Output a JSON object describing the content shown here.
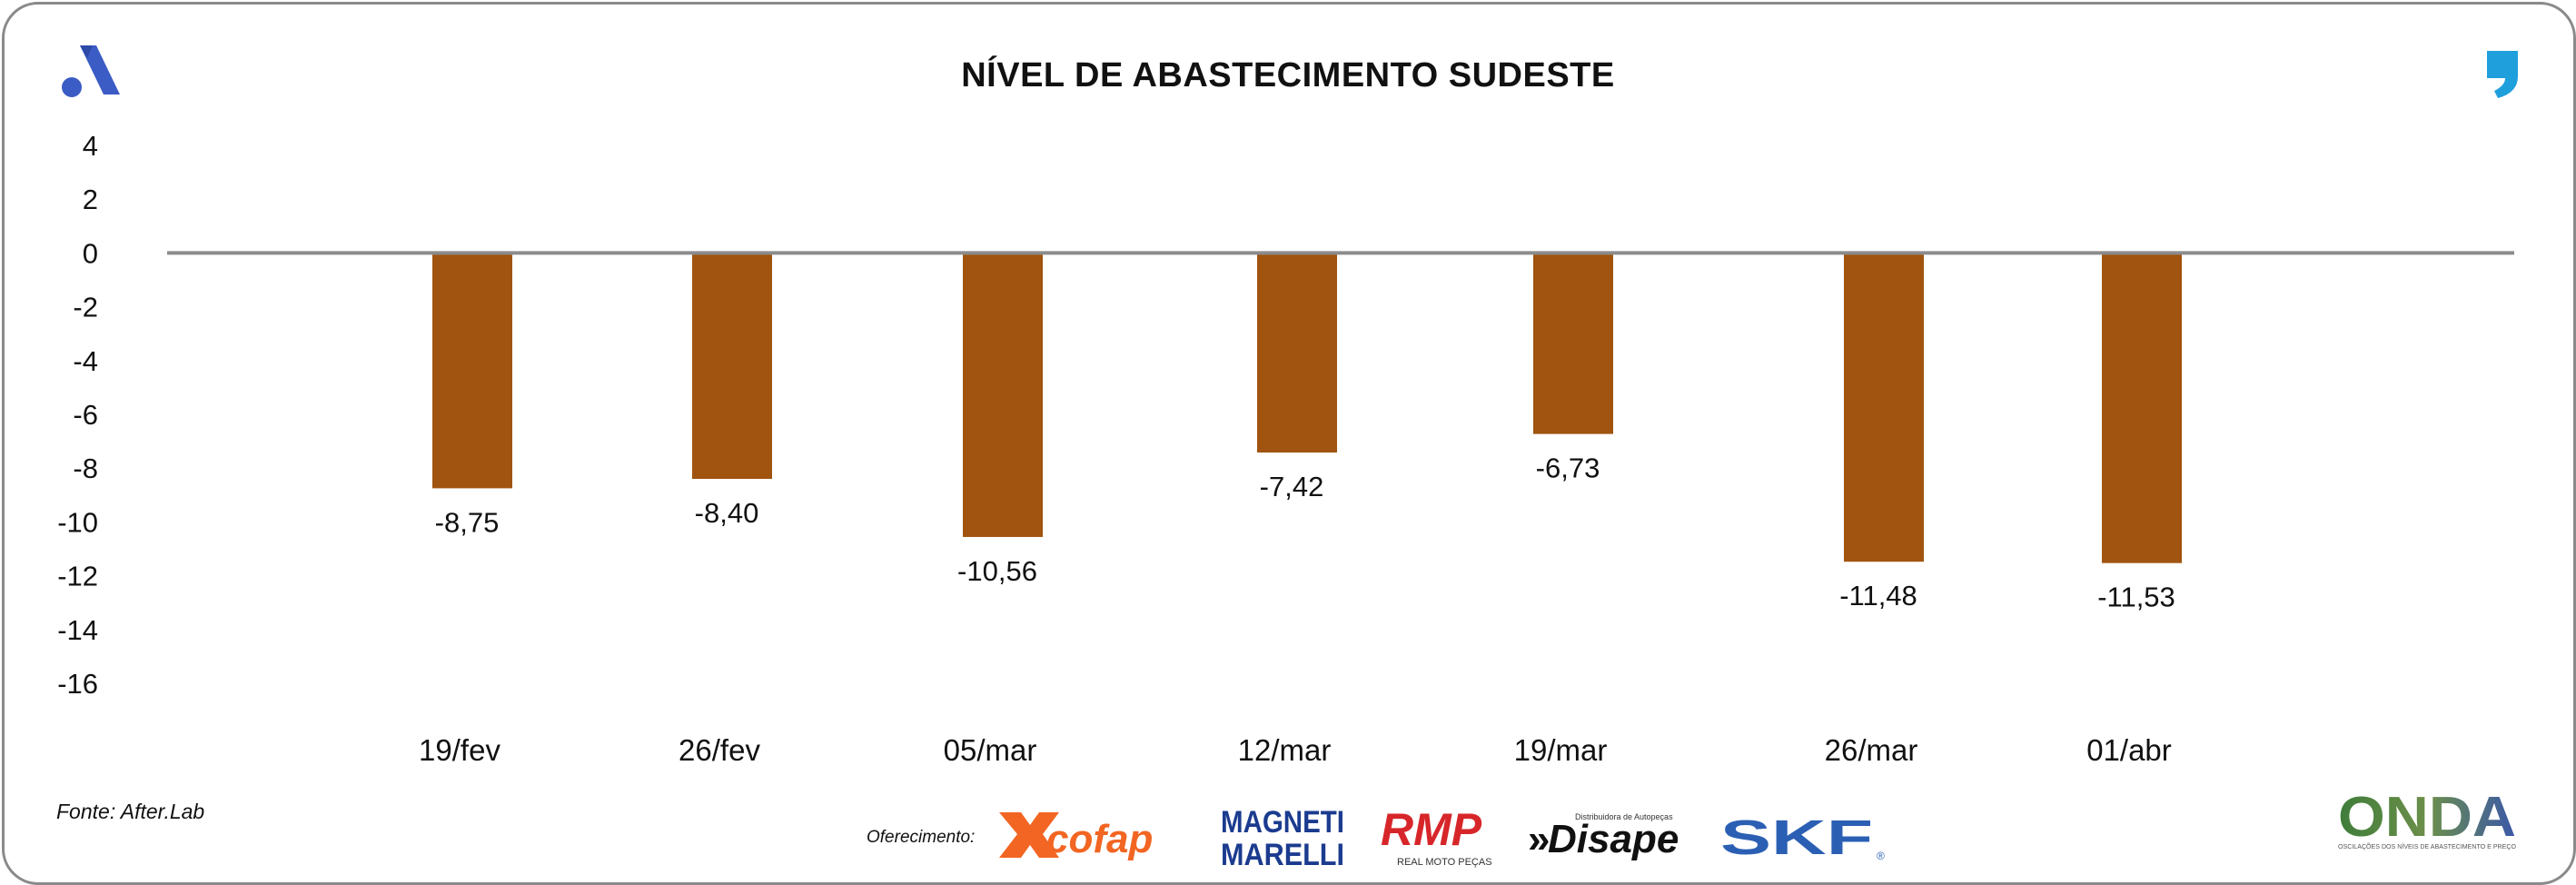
{
  "header": {
    "title": "NÍVEL DE ABASTECIMENTO SUDESTE"
  },
  "footer": {
    "source": "Fonte: After.Lab",
    "sponsor_label": "Oferecimento:",
    "sponsors": [
      "cofap",
      "MAGNETI MARELLI",
      "RMP",
      "Disape",
      "SKF"
    ],
    "rmp_sub": "REAL MOTO PEÇAS",
    "disape_sub": "Distribuidora de Autopeças",
    "onda_logo": "ONDA",
    "onda_sub": "OSCILAÇÕES DOS NÍVEIS DE ABASTECIMENTO E PREÇO"
  },
  "colors": {
    "bar": "#a0540f",
    "axis": "#8c8c8c",
    "brand_blue": "#3b5cc4",
    "quote_blue": "#1fa0dc"
  },
  "icons": [
    "brand-logo-icon",
    "quote-mark-icon"
  ],
  "chart_data": {
    "type": "bar",
    "categories": [
      "19/fev",
      "26/fev",
      "05/mar",
      "12/mar",
      "19/mar",
      "26/mar",
      "01/abr"
    ],
    "values": [
      -8.75,
      -8.4,
      -10.56,
      -7.42,
      -6.73,
      -11.48,
      -11.53
    ],
    "value_labels": [
      "-8,75",
      "-8,40",
      "-10,56",
      "-7,42",
      "-6,73",
      "-11,48",
      "-11,53"
    ],
    "title": "NÍVEL DE ABASTECIMENTO SUDESTE",
    "xlabel": "",
    "ylabel": "",
    "ylim": [
      -16,
      4
    ],
    "yticks": [
      4,
      2,
      0,
      -2,
      -4,
      -6,
      -8,
      -10,
      -12,
      -14,
      -16
    ],
    "ytick_labels": [
      "4",
      "2",
      "0",
      "-2",
      "-4",
      "-6",
      "-8",
      "-10",
      "-12",
      "-14",
      "-16"
    ],
    "grid": false,
    "legend": "none"
  }
}
